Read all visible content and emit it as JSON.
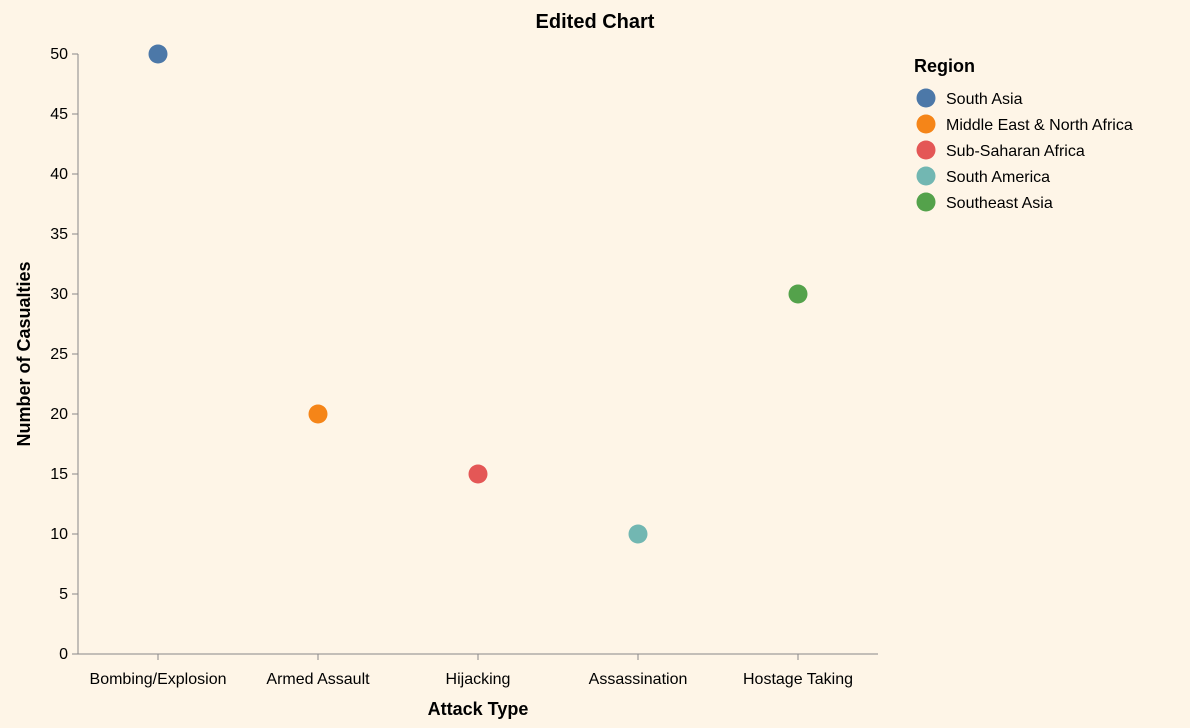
{
  "chart_data": {
    "type": "scatter",
    "title": "Edited Chart",
    "xlabel": "Attack Type",
    "ylabel": "Number of Casualties",
    "categories": [
      "Bombing/Explosion",
      "Armed Assault",
      "Hijacking",
      "Assassination",
      "Hostage Taking"
    ],
    "ylim": [
      0,
      50
    ],
    "yticks": [
      0,
      5,
      10,
      15,
      20,
      25,
      30,
      35,
      40,
      45,
      50
    ],
    "grid": false,
    "legend": {
      "title": "Region",
      "position": "top-right"
    },
    "points": [
      {
        "x": "Bombing/Explosion",
        "y": 50,
        "region": "South Asia",
        "color": "#4c78a8"
      },
      {
        "x": "Armed Assault",
        "y": 20,
        "region": "Middle East & North Africa",
        "color": "#f58518"
      },
      {
        "x": "Hijacking",
        "y": 15,
        "region": "Sub-Saharan Africa",
        "color": "#e45756"
      },
      {
        "x": "Assassination",
        "y": 10,
        "region": "South America",
        "color": "#72b7b2"
      },
      {
        "x": "Hostage Taking",
        "y": 30,
        "region": "Southeast Asia",
        "color": "#54a24b"
      }
    ],
    "regions": [
      {
        "name": "South Asia",
        "color": "#4c78a8"
      },
      {
        "name": "Middle East & North Africa",
        "color": "#f58518"
      },
      {
        "name": "Sub-Saharan Africa",
        "color": "#e45756"
      },
      {
        "name": "South America",
        "color": "#72b7b2"
      },
      {
        "name": "Southeast Asia",
        "color": "#54a24b"
      }
    ],
    "background": "#fef5e7"
  }
}
